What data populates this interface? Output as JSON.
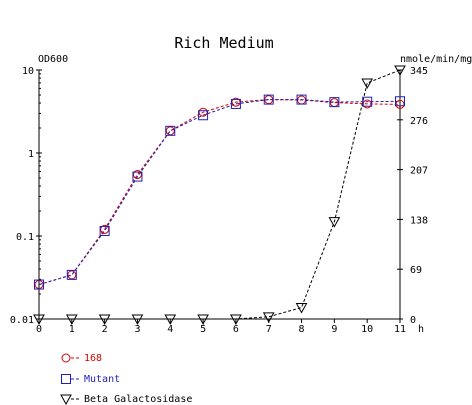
{
  "chart_data": {
    "type": "line",
    "title": "Rich Medium",
    "left_axis_label": "OD600",
    "right_axis_label": "nmole/min/mg",
    "x_unit_label": "h",
    "x": [
      0,
      1,
      2,
      3,
      4,
      5,
      6,
      7,
      8,
      9,
      10,
      11
    ],
    "x_ticks": [
      "0",
      "1",
      "2",
      "3",
      "4",
      "5",
      "6",
      "7",
      "8",
      "9",
      "10",
      "11"
    ],
    "xlim": [
      0,
      11
    ],
    "y_left": {
      "scale": "log",
      "lim": [
        0.01,
        10
      ],
      "ticks": [
        0.01,
        0.1,
        1,
        10
      ],
      "tick_labels": [
        "0.01",
        "0.1",
        "1",
        "10"
      ]
    },
    "y_right": {
      "scale": "linear",
      "lim": [
        0,
        345
      ],
      "ticks": [
        0,
        69,
        138,
        207,
        276,
        345
      ],
      "tick_labels": [
        "0",
        "69",
        "138",
        "207",
        "276",
        "345"
      ]
    },
    "grid": false,
    "legend_position": "bottom-left",
    "series": [
      {
        "name": "168",
        "axis": "left",
        "marker": "circle",
        "color": "#d40000",
        "values": [
          0.026,
          0.034,
          0.12,
          0.55,
          1.85,
          3.1,
          4.1,
          4.4,
          4.35,
          4.05,
          3.9,
          3.85
        ]
      },
      {
        "name": "Mutant",
        "axis": "left",
        "marker": "square",
        "color": "#1f1fb4",
        "values": [
          0.026,
          0.034,
          0.115,
          0.52,
          1.85,
          2.85,
          3.9,
          4.4,
          4.4,
          4.1,
          4.15,
          4.2
        ]
      },
      {
        "name": "Beta Galactosidase",
        "axis": "right",
        "marker": "triangle-down",
        "color": "#000000",
        "values": [
          0,
          0,
          0,
          0,
          0,
          0,
          0,
          3,
          16,
          135,
          327,
          345
        ]
      }
    ]
  }
}
